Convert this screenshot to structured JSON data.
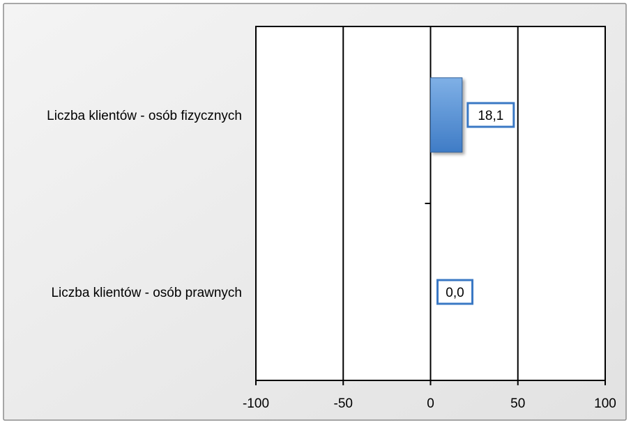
{
  "chart_data": {
    "type": "bar",
    "orientation": "horizontal",
    "categories": [
      "Liczba klientów - osób fizycznych",
      "Liczba klientów - osób prawnych"
    ],
    "values": [
      18.1,
      0.0
    ],
    "data_labels": [
      "18,1",
      "0,0"
    ],
    "xlim": [
      -100,
      100
    ],
    "x_ticks": [
      -100,
      -50,
      0,
      50,
      100
    ],
    "x_tick_labels": [
      "-100",
      "-50",
      "0",
      "50",
      "100"
    ],
    "title": "",
    "xlabel": "",
    "ylabel": "",
    "grid": "vertical",
    "legend": "none"
  },
  "colors": {
    "frame_bg": "#ececec",
    "frame_border": "#8c8c8c",
    "plot_bg": "#ffffff",
    "bar_fill_top": "#7fb0e6",
    "bar_fill_bottom": "#3f7cc6",
    "bar_stroke": "#2f5f99",
    "label_border": "#3a78c4"
  }
}
